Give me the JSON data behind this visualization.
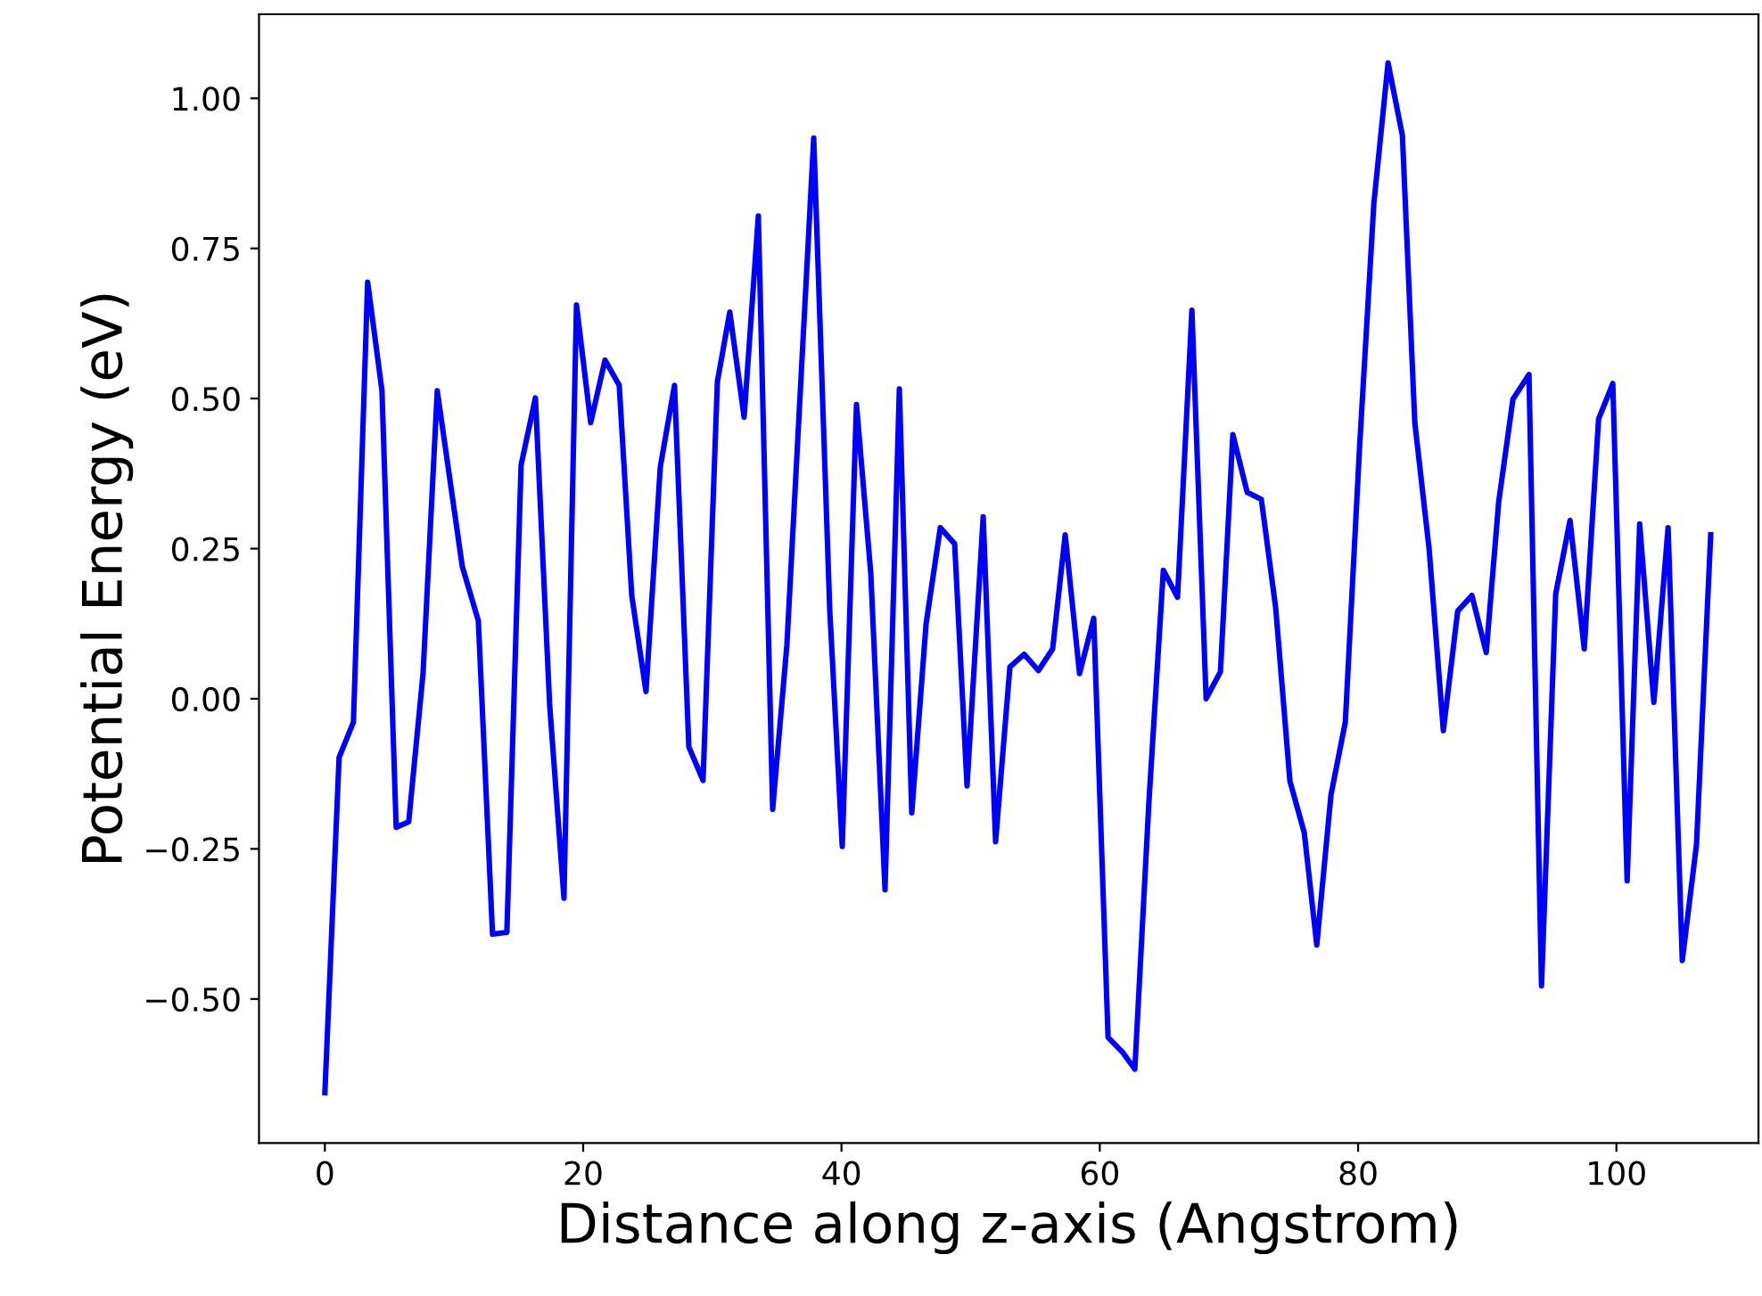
{
  "chart_data": {
    "type": "line",
    "xlabel": "Distance along z-axis (Angstrom)",
    "ylabel": "Potential Energy (eV)",
    "xlim": [
      -5.1,
      111
    ],
    "ylim": [
      -0.74,
      1.14
    ],
    "xticks": [
      0,
      20,
      40,
      60,
      80,
      100
    ],
    "yticks": [
      {
        "value": -0.5,
        "label": "−0.50"
      },
      {
        "value": -0.25,
        "label": "−0.25"
      },
      {
        "value": 0,
        "label": "0.00"
      },
      {
        "value": 0.25,
        "label": "0.25"
      },
      {
        "value": 0.5,
        "label": "0.50"
      },
      {
        "value": 0.75,
        "label": "0.75"
      },
      {
        "value": 1.0,
        "label": "1.00"
      }
    ],
    "grid": false,
    "series": [
      {
        "color": "#0000ff",
        "x": [
          0.0,
          1.1,
          2.21,
          3.31,
          4.42,
          5.52,
          6.49,
          7.6,
          8.7,
          10.64,
          11.88,
          12.98,
          14.09,
          15.19,
          16.3,
          17.4,
          18.51,
          19.48,
          20.58,
          21.69,
          22.79,
          23.76,
          24.86,
          25.97,
          27.07,
          28.18,
          29.28,
          30.39,
          31.35,
          32.46,
          33.56,
          34.67,
          35.77,
          37.85,
          39.09,
          40.06,
          41.16,
          42.27,
          43.37,
          44.48,
          45.44,
          46.55,
          47.65,
          48.76,
          49.72,
          50.97,
          51.93,
          53.04,
          54.14,
          55.25,
          56.35,
          57.32,
          58.43,
          59.53,
          60.64,
          61.74,
          62.71,
          63.81,
          64.92,
          66.02,
          67.13,
          68.23,
          69.34,
          70.3,
          71.41,
          72.51,
          73.62,
          74.72,
          75.83,
          76.8,
          77.9,
          79.01,
          80.11,
          81.22,
          82.32,
          83.43,
          84.39,
          85.5,
          86.6,
          87.71,
          88.81,
          89.92,
          90.88,
          91.99,
          93.23,
          94.2,
          95.3,
          96.41,
          97.51,
          98.62,
          99.72,
          100.83,
          101.8,
          102.9,
          104.0,
          105.1,
          106.2,
          107.3
        ],
        "values": [
          -0.656,
          -0.098,
          -0.039,
          0.694,
          0.513,
          -0.214,
          -0.205,
          0.042,
          0.513,
          0.22,
          0.13,
          -0.392,
          -0.389,
          0.389,
          0.501,
          -0.009,
          -0.332,
          0.656,
          0.46,
          0.564,
          0.522,
          0.172,
          0.012,
          0.386,
          0.522,
          -0.08,
          -0.136,
          0.528,
          0.644,
          0.469,
          0.804,
          -0.184,
          0.089,
          0.934,
          0.148,
          -0.246,
          0.49,
          0.208,
          -0.318,
          0.516,
          -0.19,
          0.125,
          0.285,
          0.258,
          -0.145,
          0.303,
          -0.238,
          0.053,
          0.074,
          0.047,
          0.083,
          0.273,
          0.042,
          0.134,
          -0.564,
          -0.588,
          -0.617,
          -0.169,
          0.214,
          0.169,
          0.647,
          0.0,
          0.045,
          0.44,
          0.344,
          0.332,
          0.151,
          -0.137,
          -0.223,
          -0.41,
          -0.16,
          -0.039,
          0.418,
          0.825,
          1.059,
          0.938,
          0.46,
          0.249,
          -0.053,
          0.146,
          0.172,
          0.077,
          0.327,
          0.499,
          0.54,
          -0.478,
          0.175,
          0.297,
          0.083,
          0.466,
          0.525,
          -0.303,
          0.291,
          -0.006,
          0.285,
          -0.436,
          -0.243,
          0.273
        ]
      }
    ]
  }
}
